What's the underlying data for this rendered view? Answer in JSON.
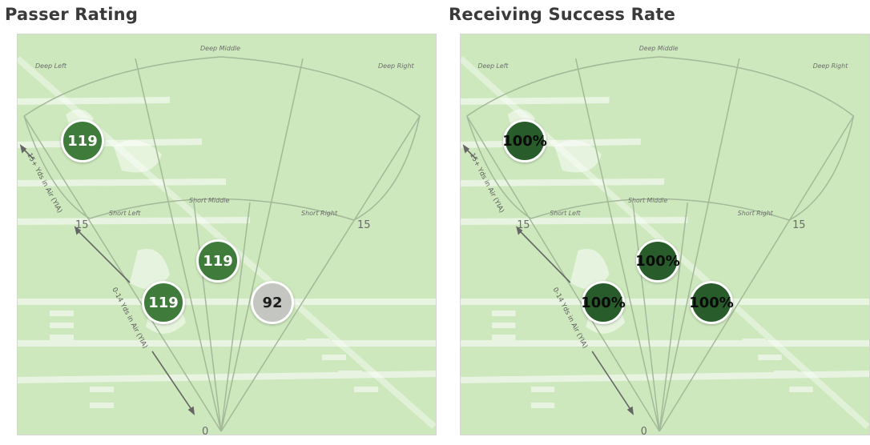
{
  "panels": {
    "left": {
      "title": "Passer Rating",
      "zones": {
        "deep_left": "Deep Left",
        "deep_middle": "Deep Middle",
        "deep_right": "Deep Right",
        "short_left": "Short Left",
        "short_middle": "Short Middle",
        "short_right": "Short Right"
      },
      "axis": {
        "zero": "0",
        "fifteen_left": "15",
        "fifteen_right": "15"
      },
      "yia": {
        "deep": "15+ Yds in Air (YIA)",
        "short": "0-14 Yds in Air (YIA)"
      },
      "values": {
        "deep_left": "119",
        "short_middle": "119",
        "short_left": "119",
        "short_right": "92"
      }
    },
    "right": {
      "title": "Receiving Success Rate",
      "zones": {
        "deep_left": "Deep Left",
        "deep_middle": "Deep Middle",
        "deep_right": "Deep Right",
        "short_left": "Short Left",
        "short_middle": "Short Middle",
        "short_right": "Short Right"
      },
      "axis": {
        "zero": "0",
        "fifteen_left": "15",
        "fifteen_right": "15"
      },
      "yia": {
        "deep": "15+ Yds in Air (YIA)",
        "short": "0-14 Yds in Air (YIA)"
      },
      "values": {
        "deep_left": "100%",
        "short_middle": "100%",
        "short_left": "100%",
        "short_right": "100%"
      }
    }
  },
  "colors": {
    "field": "#cde8bd",
    "bubble_green": "#3f7c3c",
    "bubble_gray": "#c4c6c2",
    "bubble_dark": "#285c2a"
  }
}
